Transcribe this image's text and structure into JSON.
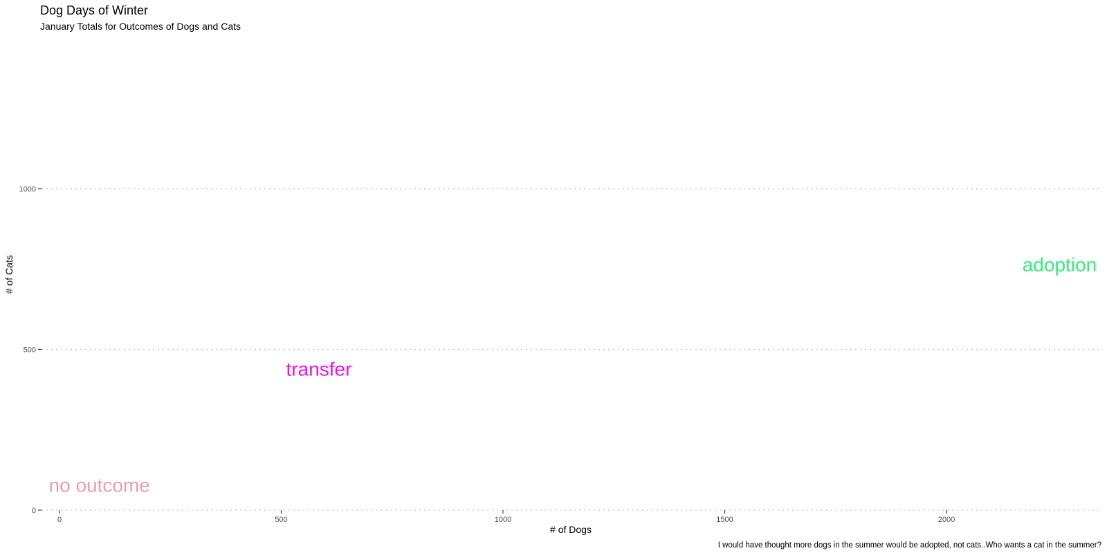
{
  "chart_data": {
    "type": "scatter",
    "title": "Dog Days of Winter",
    "subtitle": "January Totals for Outcomes of Dogs and Cats",
    "xlabel": "# of Dogs",
    "ylabel": "# of Cats",
    "caption": "I would have thought more dogs in the summer would be adopted, not cats..Who wants a cat in the summer?",
    "xlim": [
      -45,
      2340
    ],
    "ylim": [
      0,
      1000
    ],
    "x_ticks": [
      0,
      500,
      1000,
      1500,
      2000
    ],
    "y_ticks": [
      0,
      500,
      1000
    ],
    "grid": "horizontal dotted",
    "points": [
      {
        "label": "no outcome",
        "x": 90,
        "y": 78,
        "color": "#e8a0aa"
      },
      {
        "label": "transfer",
        "x": 585,
        "y": 440,
        "color": "#ee11ee"
      },
      {
        "label": "adoption",
        "x": 2255,
        "y": 765,
        "color": "#33ee77"
      }
    ]
  }
}
